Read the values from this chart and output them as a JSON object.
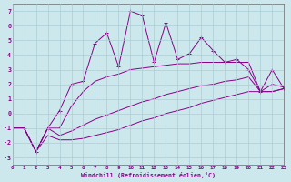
{
  "xlabel": "Windchill (Refroidissement éolien,°C)",
  "background_color": "#cde8ec",
  "grid_color": "#aacdd4",
  "line_color": "#880088",
  "xlim": [
    0,
    23
  ],
  "ylim": [
    -3.5,
    7.5
  ],
  "xticks": [
    0,
    1,
    2,
    3,
    4,
    5,
    6,
    7,
    8,
    9,
    10,
    11,
    12,
    13,
    14,
    15,
    16,
    17,
    18,
    19,
    20,
    21,
    22,
    23
  ],
  "yticks": [
    -3,
    -2,
    -1,
    0,
    1,
    2,
    3,
    4,
    5,
    6,
    7
  ],
  "series1_x": [
    0,
    1,
    2,
    3,
    4,
    5,
    6,
    7,
    8,
    9,
    10,
    11,
    12,
    13,
    14,
    15,
    16,
    17,
    18,
    19,
    20,
    21,
    22,
    23
  ],
  "series1_y": [
    -1,
    -1,
    -2.6,
    -1,
    0.2,
    2,
    2.2,
    4.8,
    5.5,
    3.2,
    7,
    6.7,
    3.5,
    6.2,
    3.7,
    4.1,
    5.2,
    4.3,
    3.5,
    3.7,
    3,
    1.5,
    3,
    1.7
  ],
  "series2_x": [
    0,
    1,
    2,
    3,
    4,
    5,
    6,
    7,
    8,
    9,
    10,
    11,
    12,
    13,
    14,
    15,
    16,
    17,
    18,
    19,
    20,
    21,
    22,
    23
  ],
  "series2_y": [
    -1,
    -1,
    -2.6,
    -1,
    -1,
    0.5,
    1.5,
    2.2,
    2.5,
    2.7,
    3.0,
    3.1,
    3.2,
    3.3,
    3.4,
    3.4,
    3.5,
    3.5,
    3.5,
    3.5,
    3.5,
    1.5,
    2.0,
    1.8
  ],
  "series3_x": [
    0,
    1,
    2,
    3,
    4,
    5,
    6,
    7,
    8,
    9,
    10,
    11,
    12,
    13,
    14,
    15,
    16,
    17,
    18,
    19,
    20,
    21,
    22,
    23
  ],
  "series3_y": [
    -1,
    -1,
    -2.6,
    -1.0,
    -1.5,
    -1.2,
    -0.8,
    -0.4,
    -0.1,
    0.2,
    0.5,
    0.8,
    1.0,
    1.3,
    1.5,
    1.7,
    1.9,
    2.0,
    2.2,
    2.3,
    2.5,
    1.5,
    1.5,
    1.7
  ],
  "series4_x": [
    0,
    1,
    2,
    3,
    4,
    5,
    6,
    7,
    8,
    9,
    10,
    11,
    12,
    13,
    14,
    15,
    16,
    17,
    18,
    19,
    20,
    21,
    22,
    23
  ],
  "series4_y": [
    -1,
    -1,
    -2.6,
    -1.5,
    -1.8,
    -1.8,
    -1.7,
    -1.5,
    -1.3,
    -1.1,
    -0.8,
    -0.5,
    -0.3,
    0.0,
    0.2,
    0.4,
    0.7,
    0.9,
    1.1,
    1.3,
    1.5,
    1.5,
    1.5,
    1.7
  ]
}
